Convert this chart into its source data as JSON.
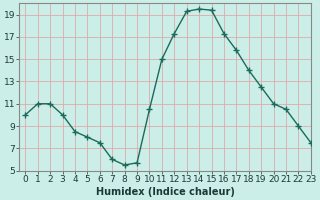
{
  "x": [
    0,
    1,
    2,
    3,
    4,
    5,
    6,
    7,
    8,
    9,
    10,
    11,
    12,
    13,
    14,
    15,
    16,
    17,
    18,
    19,
    20,
    21,
    22,
    23
  ],
  "y": [
    10.0,
    11.0,
    11.0,
    10.0,
    8.5,
    8.0,
    7.5,
    6.0,
    5.5,
    5.7,
    10.5,
    15.0,
    17.3,
    19.3,
    19.5,
    19.4,
    17.3,
    15.8,
    14.0,
    12.5,
    11.0,
    10.5,
    9.0,
    7.5
  ],
  "line_color": "#1a6b5a",
  "marker": "+",
  "marker_size": 4,
  "marker_lw": 1.0,
  "bg_color": "#cceee8",
  "grid_color": "#ddaaaa",
  "xlabel": "Humidex (Indice chaleur)",
  "ylim": [
    5,
    20
  ],
  "xlim": [
    -0.5,
    23
  ],
  "yticks": [
    5,
    7,
    9,
    11,
    13,
    15,
    17,
    19
  ],
  "xticks": [
    0,
    1,
    2,
    3,
    4,
    5,
    6,
    7,
    8,
    9,
    10,
    11,
    12,
    13,
    14,
    15,
    16,
    17,
    18,
    19,
    20,
    21,
    22,
    23
  ],
  "label_fontsize": 7,
  "tick_fontsize": 6.5,
  "line_width": 1.0,
  "spine_color": "#888888"
}
